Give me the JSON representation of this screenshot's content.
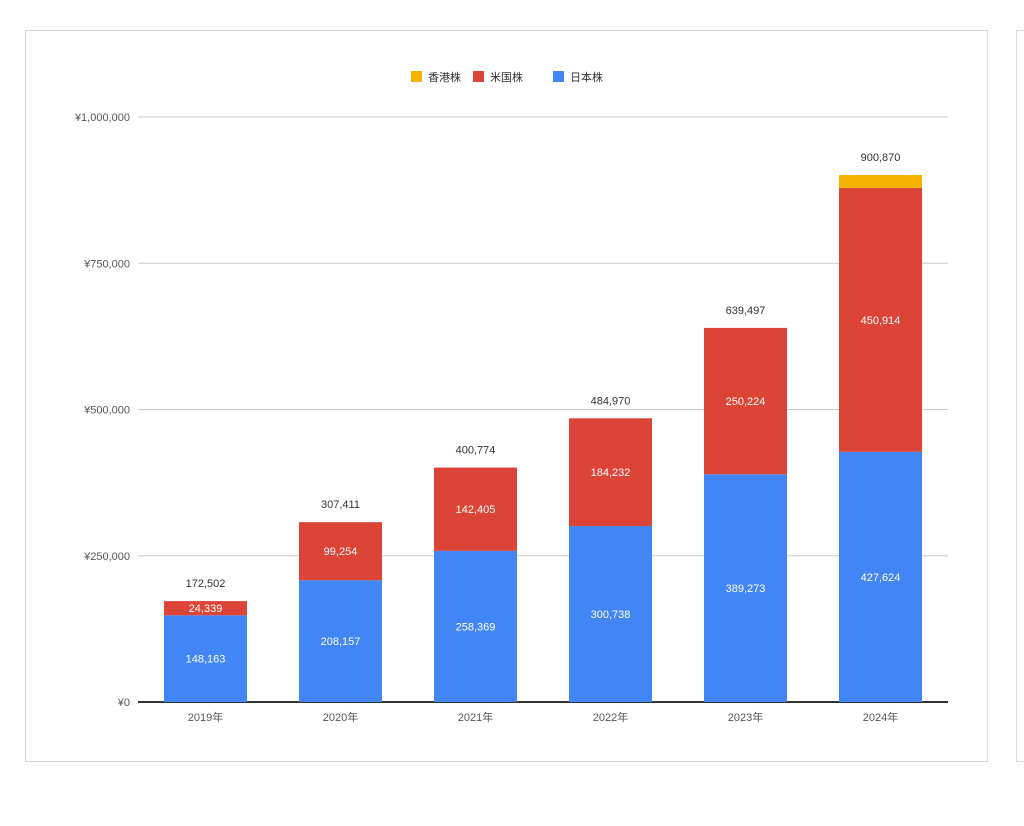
{
  "chart_data": {
    "type": "bar",
    "stacked": true,
    "categories": [
      "2019年",
      "2020年",
      "2021年",
      "2022年",
      "2023年",
      "2024年"
    ],
    "series": [
      {
        "name": "日本株",
        "color": "#4285f4",
        "values": [
          148163,
          208157,
          258369,
          300738,
          389273,
          427624
        ]
      },
      {
        "name": "米国株",
        "color": "#db4437",
        "values": [
          24339,
          99254,
          142405,
          184232,
          250224,
          450914
        ]
      },
      {
        "name": "香港株",
        "color": "#f4b400",
        "values": [
          0,
          0,
          0,
          0,
          0,
          22332
        ]
      }
    ],
    "segment_labels": [
      [
        "148,163",
        "208,157",
        "258,369",
        "300,738",
        "389,273",
        "427,624"
      ],
      [
        "24,339",
        "99,254",
        "142,405",
        "184,232",
        "250,224",
        "450,914"
      ],
      [
        "",
        "",
        "",
        "",
        "",
        ""
      ]
    ],
    "totals": [
      "172,502",
      "307,411",
      "400,774",
      "484,970",
      "639,497",
      "900,870"
    ],
    "legend_order": [
      "香港株",
      "米国株",
      "日本株"
    ],
    "legend_position": "top",
    "ylim": [
      0,
      1000000
    ],
    "yticks": [
      0,
      250000,
      500000,
      750000,
      1000000
    ],
    "ytick_labels": [
      "¥0",
      "¥250,000",
      "¥500,000",
      "¥750,000",
      "¥1,000,000"
    ],
    "grid": true,
    "title": "",
    "xlabel": "",
    "ylabel": ""
  }
}
